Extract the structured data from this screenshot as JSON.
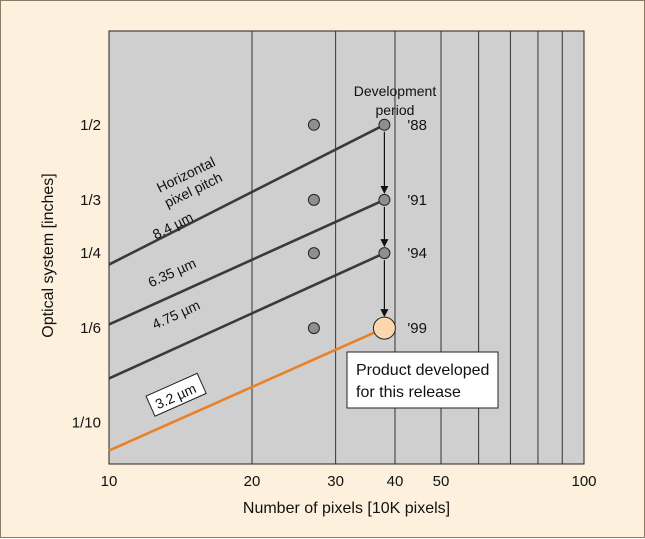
{
  "chart_data": {
    "type": "line",
    "xlabel": "Number of pixels [10K pixels]",
    "ylabel": "Optical system [inches]",
    "x_scale": "log",
    "y_scale": "log",
    "xlim": [
      10,
      100
    ],
    "ylim": [
      0.08,
      0.83
    ],
    "xticks": [
      10,
      20,
      30,
      40,
      50,
      100
    ],
    "xtick_labels": [
      "10",
      "20",
      "30",
      "40",
      "50",
      "100"
    ],
    "x_gridlines": [
      20,
      30,
      40,
      50,
      60,
      70,
      80,
      90
    ],
    "yticks": [
      0.5,
      0.3333,
      0.25,
      0.1667,
      0.1
    ],
    "ytick_labels": [
      "1/2",
      "1/3",
      "1/4",
      "1/6",
      "1/10"
    ],
    "series": [
      {
        "name": "8.4 µm",
        "color": "#3a3a3a",
        "x": [
          10,
          38
        ],
        "y": [
          0.235,
          0.5
        ]
      },
      {
        "name": "6.35 µm",
        "color": "#3a3a3a",
        "x": [
          10,
          38
        ],
        "y": [
          0.17,
          0.3333
        ]
      },
      {
        "name": "4.75 µm",
        "color": "#3a3a3a",
        "x": [
          10,
          38
        ],
        "y": [
          0.127,
          0.25
        ]
      },
      {
        "name": "3.2 µm",
        "color": "#e8822a",
        "x": [
          10,
          38
        ],
        "y": [
          0.086,
          0.1667
        ]
      }
    ],
    "points": [
      {
        "x": 27,
        "y": 0.5,
        "kind": "gray"
      },
      {
        "x": 27,
        "y": 0.3333,
        "kind": "gray"
      },
      {
        "x": 27,
        "y": 0.25,
        "kind": "gray"
      },
      {
        "x": 27,
        "y": 0.1667,
        "kind": "gray"
      },
      {
        "x": 38,
        "y": 0.5,
        "kind": "gray",
        "label": "'88"
      },
      {
        "x": 38,
        "y": 0.3333,
        "kind": "gray",
        "label": "'91"
      },
      {
        "x": 38,
        "y": 0.25,
        "kind": "gray",
        "label": "'94"
      },
      {
        "x": 38,
        "y": 0.1667,
        "kind": "highlight",
        "label": "'99"
      }
    ],
    "annotations": {
      "development_period": "Development\nperiod",
      "horizontal_pixel_pitch": "Horizontal\npixel pitch",
      "callout": "Product developed\nfor this release",
      "label_8_4": "8.4 µm",
      "label_6_35": "6.35 µm",
      "label_4_75": "4.75 µm",
      "label_3_2": "3.2 µm"
    },
    "colors": {
      "plot_background": "#cfcfcf",
      "figure_background": "#fdf0dc",
      "line_dark": "#3a3a3a",
      "line_orange": "#e8822a",
      "point_gray": "#8f8f8f",
      "point_highlight": "#fcd7ae"
    }
  }
}
